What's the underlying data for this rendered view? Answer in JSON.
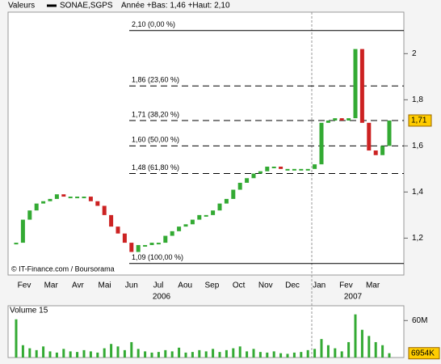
{
  "chart_data": [
    {
      "type": "candlestick",
      "header": "Valeurs",
      "subtitle": "Année +Bas: 1,46 +Haut: 2,10",
      "watermark": "© IT-Finance.com / Boursorama",
      "series": [
        {
          "name": "SONAE,SGPS",
          "color": "#000000",
          "up_color": "#33aa33",
          "down_color": "#cc2222",
          "values": [
            1.18,
            1.28,
            1.32,
            1.35,
            1.36,
            1.37,
            1.39,
            1.38,
            1.38,
            1.38,
            1.38,
            1.36,
            1.34,
            1.3,
            1.25,
            1.22,
            1.18,
            1.14,
            1.17,
            1.17,
            1.18,
            1.18,
            1.21,
            1.23,
            1.25,
            1.26,
            1.28,
            1.3,
            1.3,
            1.32,
            1.35,
            1.37,
            1.41,
            1.44,
            1.46,
            1.48,
            1.49,
            1.51,
            1.51,
            1.5,
            1.5,
            1.5,
            1.5,
            1.5,
            1.52,
            1.7,
            1.71,
            1.72,
            1.71,
            1.72,
            2.02,
            1.7,
            1.58,
            1.56,
            1.6,
            1.71
          ]
        }
      ],
      "month_labels": [
        "Fev",
        "Mar",
        "Avr",
        "Mai",
        "Jun",
        "Jul",
        "Aou",
        "Sep",
        "Oct",
        "Nov",
        "Dec",
        "Jan",
        "Fev",
        "Mar"
      ],
      "year_labels": [
        "2006",
        "2007"
      ],
      "ylim": [
        1.04,
        2.18
      ],
      "yticks": [
        {
          "value": 1.2,
          "label": "1,2"
        },
        {
          "value": 1.4,
          "label": "1,4"
        },
        {
          "value": 1.6,
          "label": "1,6"
        },
        {
          "value": 1.8,
          "label": "1,8"
        },
        2
      ],
      "levels": [
        {
          "value": 2.1,
          "label": "2,10 (0,00 %)",
          "dashed": false
        },
        {
          "value": 1.86,
          "label": "1,86 (23,60 %)",
          "dashed": true
        },
        {
          "value": 1.71,
          "label": "1,71 (38,20 %)",
          "dashed": true
        },
        {
          "value": 1.6,
          "label": "1,60 (50,00 %)",
          "dashed": true
        },
        {
          "value": 1.48,
          "label": "1,48 (61,80 %)",
          "dashed": true
        },
        {
          "value": 1.09,
          "label": "1,09 (100,00 %)",
          "dashed": false
        }
      ],
      "last": {
        "value": 1.71,
        "label": "1,71"
      }
    },
    {
      "type": "bar",
      "title": "Volume 15",
      "color": "#33aa33",
      "values": [
        62,
        20,
        15,
        12,
        18,
        10,
        8,
        14,
        10,
        9,
        12,
        10,
        8,
        15,
        22,
        18,
        12,
        25,
        14,
        10,
        8,
        9,
        12,
        10,
        16,
        8,
        9,
        12,
        10,
        14,
        9,
        12,
        15,
        18,
        10,
        14,
        9,
        8,
        10,
        7,
        6,
        8,
        9,
        12,
        14,
        30,
        20,
        15,
        10,
        25,
        70,
        45,
        35,
        25,
        20,
        7
      ],
      "ylim": [
        0,
        84
      ],
      "yticks": [
        {
          "value": 60,
          "label": "60M"
        }
      ],
      "last": {
        "value": 6.954,
        "label": "6954K"
      }
    }
  ]
}
